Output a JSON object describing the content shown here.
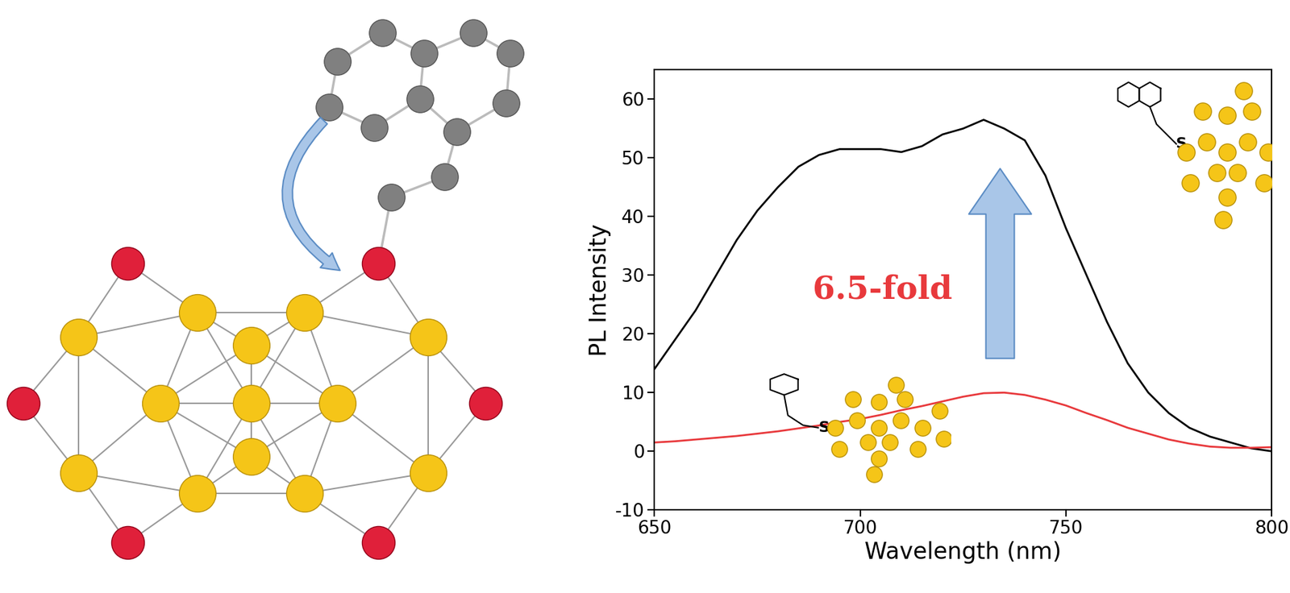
{
  "chart_data": {
    "type": "line",
    "x_label": "Wavelength (nm)",
    "y_label": "PL Intensity",
    "x": [
      650,
      655,
      660,
      665,
      670,
      675,
      680,
      685,
      690,
      695,
      700,
      705,
      710,
      715,
      720,
      725,
      730,
      735,
      740,
      745,
      750,
      755,
      760,
      765,
      770,
      775,
      780,
      785,
      790,
      795,
      800
    ],
    "series": [
      {
        "color": "#000000",
        "values": [
          14,
          19,
          24,
          30,
          36,
          41,
          45,
          48.5,
          50.5,
          51.5,
          51.5,
          51.5,
          51,
          52,
          54,
          55,
          56.5,
          55,
          53,
          47,
          38,
          30,
          22,
          15,
          10,
          6.5,
          4,
          2.5,
          1.5,
          0.5,
          0
        ]
      },
      {
        "color": "#e8393c",
        "values": [
          1.5,
          1.7,
          2,
          2.3,
          2.6,
          3,
          3.4,
          3.9,
          4.4,
          5,
          5.5,
          6.2,
          7,
          7.7,
          8.5,
          9.3,
          9.9,
          10,
          9.6,
          8.8,
          7.8,
          6.5,
          5.3,
          4,
          3,
          2,
          1.3,
          0.8,
          0.6,
          0.6,
          0.7
        ]
      }
    ],
    "xlim": [
      650,
      800
    ],
    "xticks": [
      650,
      700,
      750,
      800
    ],
    "ylim": [
      -10,
      65
    ],
    "yticks": [
      -10,
      0,
      10,
      20,
      30,
      40,
      50,
      60
    ],
    "annotations": [
      {
        "text": "6.5-fold",
        "color": "#e8393c"
      },
      {
        "text": "S"
      },
      {
        "text": "S"
      }
    ]
  }
}
